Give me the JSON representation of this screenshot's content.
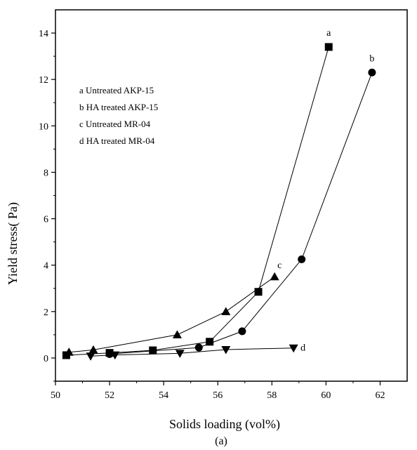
{
  "chart_data": {
    "type": "line",
    "xlabel": "Solids loading (vol%)",
    "ylabel": "Yield stress( Pa)",
    "caption": "(a)",
    "xlim": [
      50,
      63
    ],
    "ylim": [
      -1,
      15
    ],
    "xticks": [
      50,
      52,
      54,
      56,
      58,
      60,
      62
    ],
    "yticks": [
      0,
      2,
      4,
      6,
      8,
      10,
      12,
      14
    ],
    "legend": {
      "placement": "top-left",
      "entries": [
        "a Untreated AKP-15",
        "b HA treated AKP-15",
        "c Untreated MR-04",
        "d HA treated MR-04"
      ]
    },
    "series": [
      {
        "name": "a",
        "marker": "square",
        "x": [
          50.4,
          52.0,
          53.6,
          55.7,
          57.5,
          60.1
        ],
        "y": [
          0.12,
          0.22,
          0.33,
          0.7,
          2.85,
          13.4
        ]
      },
      {
        "name": "b",
        "marker": "circle",
        "x": [
          52.0,
          55.3,
          56.9,
          59.1,
          61.7
        ],
        "y": [
          0.17,
          0.45,
          1.15,
          4.25,
          12.3
        ]
      },
      {
        "name": "c",
        "marker": "triangle-up",
        "x": [
          50.5,
          51.4,
          54.5,
          56.3,
          58.1
        ],
        "y": [
          0.25,
          0.35,
          1.0,
          2.0,
          3.5
        ]
      },
      {
        "name": "d",
        "marker": "triangle-down",
        "x": [
          51.3,
          52.2,
          54.6,
          56.3,
          58.8
        ],
        "y": [
          0.08,
          0.13,
          0.2,
          0.36,
          0.43
        ]
      }
    ]
  }
}
